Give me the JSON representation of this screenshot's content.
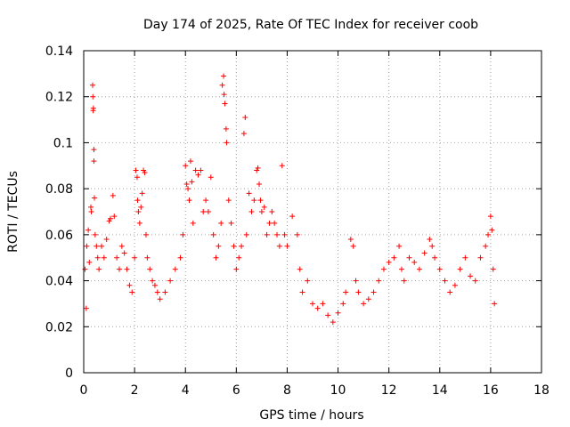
{
  "chart_data": {
    "type": "scatter",
    "title": "Day 174 of 2025, Rate Of TEC Index for receiver coob",
    "xlabel": "GPS time / hours",
    "ylabel": "ROTI / TECUs",
    "xlim": [
      0,
      18
    ],
    "ylim": [
      0,
      0.14
    ],
    "xticks": [
      0,
      2,
      4,
      6,
      8,
      10,
      12,
      14,
      16,
      18
    ],
    "xtick_labels": [
      "0",
      "2",
      "4",
      "6",
      "8",
      "10",
      "12",
      "14",
      "16",
      "18"
    ],
    "yticks": [
      0,
      0.02,
      0.04,
      0.06,
      0.08,
      0.1,
      0.12,
      0.14
    ],
    "ytick_labels": [
      "0",
      "0.02",
      "0.04",
      "0.06",
      "0.08",
      "0.1",
      "0.12",
      "0.14"
    ],
    "grid": true,
    "marker": "plus",
    "color": "#ff0000",
    "series": [
      {
        "name": "ROTI",
        "points": [
          [
            0.05,
            0.045
          ],
          [
            0.1,
            0.028
          ],
          [
            0.12,
            0.055
          ],
          [
            0.18,
            0.062
          ],
          [
            0.22,
            0.048
          ],
          [
            0.28,
            0.072
          ],
          [
            0.3,
            0.07
          ],
          [
            0.35,
            0.125
          ],
          [
            0.36,
            0.12
          ],
          [
            0.37,
            0.114
          ],
          [
            0.38,
            0.115
          ],
          [
            0.4,
            0.097
          ],
          [
            0.4,
            0.092
          ],
          [
            0.42,
            0.076
          ],
          [
            0.45,
            0.06
          ],
          [
            0.5,
            0.055
          ],
          [
            0.55,
            0.05
          ],
          [
            0.6,
            0.045
          ],
          [
            0.7,
            0.055
          ],
          [
            0.8,
            0.05
          ],
          [
            0.9,
            0.058
          ],
          [
            1.0,
            0.066
          ],
          [
            1.05,
            0.067
          ],
          [
            1.15,
            0.077
          ],
          [
            1.2,
            0.068
          ],
          [
            1.3,
            0.05
          ],
          [
            1.4,
            0.045
          ],
          [
            1.5,
            0.055
          ],
          [
            1.6,
            0.052
          ],
          [
            1.7,
            0.045
          ],
          [
            1.8,
            0.038
          ],
          [
            1.9,
            0.035
          ],
          [
            2.0,
            0.05
          ],
          [
            2.05,
            0.088
          ],
          [
            2.1,
            0.085
          ],
          [
            2.12,
            0.075
          ],
          [
            2.15,
            0.07
          ],
          [
            2.2,
            0.065
          ],
          [
            2.25,
            0.072
          ],
          [
            2.3,
            0.078
          ],
          [
            2.35,
            0.088
          ],
          [
            2.4,
            0.087
          ],
          [
            2.45,
            0.06
          ],
          [
            2.5,
            0.05
          ],
          [
            2.6,
            0.045
          ],
          [
            2.7,
            0.04
          ],
          [
            2.8,
            0.038
          ],
          [
            2.9,
            0.035
          ],
          [
            3.0,
            0.032
          ],
          [
            3.2,
            0.035
          ],
          [
            3.4,
            0.04
          ],
          [
            3.6,
            0.045
          ],
          [
            3.8,
            0.05
          ],
          [
            3.9,
            0.06
          ],
          [
            4.0,
            0.09
          ],
          [
            4.05,
            0.082
          ],
          [
            4.1,
            0.08
          ],
          [
            4.15,
            0.075
          ],
          [
            4.2,
            0.092
          ],
          [
            4.25,
            0.083
          ],
          [
            4.3,
            0.065
          ],
          [
            4.4,
            0.088
          ],
          [
            4.5,
            0.086
          ],
          [
            4.6,
            0.088
          ],
          [
            4.7,
            0.07
          ],
          [
            4.8,
            0.075
          ],
          [
            4.9,
            0.07
          ],
          [
            5.0,
            0.085
          ],
          [
            5.1,
            0.06
          ],
          [
            5.2,
            0.05
          ],
          [
            5.3,
            0.055
          ],
          [
            5.4,
            0.065
          ],
          [
            5.45,
            0.125
          ],
          [
            5.5,
            0.129
          ],
          [
            5.52,
            0.121
          ],
          [
            5.55,
            0.117
          ],
          [
            5.6,
            0.106
          ],
          [
            5.62,
            0.1
          ],
          [
            5.7,
            0.075
          ],
          [
            5.8,
            0.065
          ],
          [
            5.9,
            0.055
          ],
          [
            6.0,
            0.045
          ],
          [
            6.1,
            0.05
          ],
          [
            6.2,
            0.055
          ],
          [
            6.3,
            0.104
          ],
          [
            6.35,
            0.111
          ],
          [
            6.4,
            0.06
          ],
          [
            6.5,
            0.078
          ],
          [
            6.6,
            0.07
          ],
          [
            6.7,
            0.075
          ],
          [
            6.8,
            0.088
          ],
          [
            6.85,
            0.089
          ],
          [
            6.9,
            0.082
          ],
          [
            6.95,
            0.075
          ],
          [
            7.0,
            0.07
          ],
          [
            7.1,
            0.072
          ],
          [
            7.2,
            0.06
          ],
          [
            7.3,
            0.065
          ],
          [
            7.4,
            0.07
          ],
          [
            7.5,
            0.065
          ],
          [
            7.6,
            0.06
          ],
          [
            7.7,
            0.055
          ],
          [
            7.8,
            0.09
          ],
          [
            7.9,
            0.06
          ],
          [
            8.0,
            0.055
          ],
          [
            8.2,
            0.068
          ],
          [
            8.4,
            0.06
          ],
          [
            8.5,
            0.045
          ],
          [
            8.6,
            0.035
          ],
          [
            8.8,
            0.04
          ],
          [
            9.0,
            0.03
          ],
          [
            9.2,
            0.028
          ],
          [
            9.4,
            0.03
          ],
          [
            9.6,
            0.025
          ],
          [
            9.8,
            0.022
          ],
          [
            10.0,
            0.026
          ],
          [
            10.2,
            0.03
          ],
          [
            10.3,
            0.035
          ],
          [
            10.5,
            0.058
          ],
          [
            10.6,
            0.055
          ],
          [
            10.7,
            0.04
          ],
          [
            10.8,
            0.035
          ],
          [
            11.0,
            0.03
          ],
          [
            11.2,
            0.032
          ],
          [
            11.4,
            0.035
          ],
          [
            11.6,
            0.04
          ],
          [
            11.8,
            0.045
          ],
          [
            12.0,
            0.048
          ],
          [
            12.2,
            0.05
          ],
          [
            12.4,
            0.055
          ],
          [
            12.5,
            0.045
          ],
          [
            12.6,
            0.04
          ],
          [
            12.8,
            0.05
          ],
          [
            13.0,
            0.048
          ],
          [
            13.2,
            0.045
          ],
          [
            13.4,
            0.052
          ],
          [
            13.6,
            0.058
          ],
          [
            13.7,
            0.055
          ],
          [
            13.8,
            0.05
          ],
          [
            14.0,
            0.045
          ],
          [
            14.2,
            0.04
          ],
          [
            14.4,
            0.035
          ],
          [
            14.6,
            0.038
          ],
          [
            14.8,
            0.045
          ],
          [
            15.0,
            0.05
          ],
          [
            15.2,
            0.042
          ],
          [
            15.4,
            0.04
          ],
          [
            15.6,
            0.05
          ],
          [
            15.8,
            0.055
          ],
          [
            15.9,
            0.06
          ],
          [
            16.0,
            0.068
          ],
          [
            16.05,
            0.062
          ],
          [
            16.1,
            0.045
          ],
          [
            16.15,
            0.03
          ]
        ]
      }
    ]
  }
}
